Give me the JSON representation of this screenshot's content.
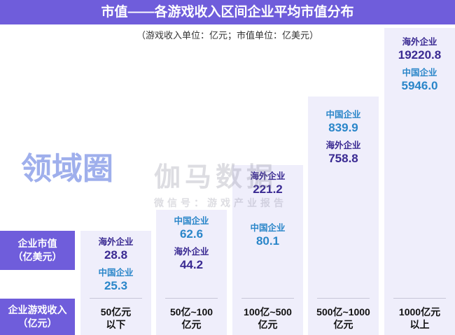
{
  "chart_data": {
    "type": "table",
    "title": "市值——各游戏收入区间企业平均市值分布",
    "subtitle": "（游戏收入单位：亿元；市值单位：亿美元）",
    "row_labels": {
      "value": [
        "企业市值",
        "（亿美元）"
      ],
      "category": [
        "企业游戏收入",
        "（亿元）"
      ]
    },
    "series_labels": {
      "overseas": "海外企业",
      "china": "中国企业"
    },
    "categories": [
      [
        "50亿元",
        "以下"
      ],
      [
        "50亿~100",
        "亿元"
      ],
      [
        "100亿~500",
        "亿元"
      ],
      [
        "500亿~1000",
        "亿元"
      ],
      [
        "1000亿元",
        "以上"
      ]
    ],
    "columns": [
      {
        "entries": [
          {
            "label": "海外企业",
            "value": "28.8",
            "kind": "ov"
          },
          {
            "label": "中国企业",
            "value": "25.3",
            "kind": "cn"
          }
        ]
      },
      {
        "entries": [
          {
            "label": "中国企业",
            "value": "62.6",
            "kind": "cn"
          },
          {
            "label": "海外企业",
            "value": "44.2",
            "kind": "ov"
          }
        ]
      },
      {
        "entries": [
          {
            "label": "中国企业",
            "value": "80.1",
            "kind": "cn"
          }
        ],
        "above": [
          {
            "label": "海外企业",
            "value": "221.2",
            "kind": "ov"
          }
        ]
      },
      {
        "entries": [
          {
            "label": "中国企业",
            "value": "839.9",
            "kind": "cn"
          },
          {
            "label": "海外企业",
            "value": "758.8",
            "kind": "ov"
          }
        ]
      },
      {
        "entries": [
          {
            "label": "海外企业",
            "value": "19220.8",
            "kind": "ov"
          },
          {
            "label": "中国企业",
            "value": "5946.0",
            "kind": "cn"
          }
        ]
      }
    ]
  },
  "watermark": {
    "logo": "领域圈",
    "brand": "伽马数据",
    "wechat": "微信号：游戏产业报告"
  },
  "colors": {
    "accent": "#6f5ddb",
    "overseas": "#3a2a92",
    "china": "#2a86c9",
    "column_bg": "#efeefb"
  }
}
